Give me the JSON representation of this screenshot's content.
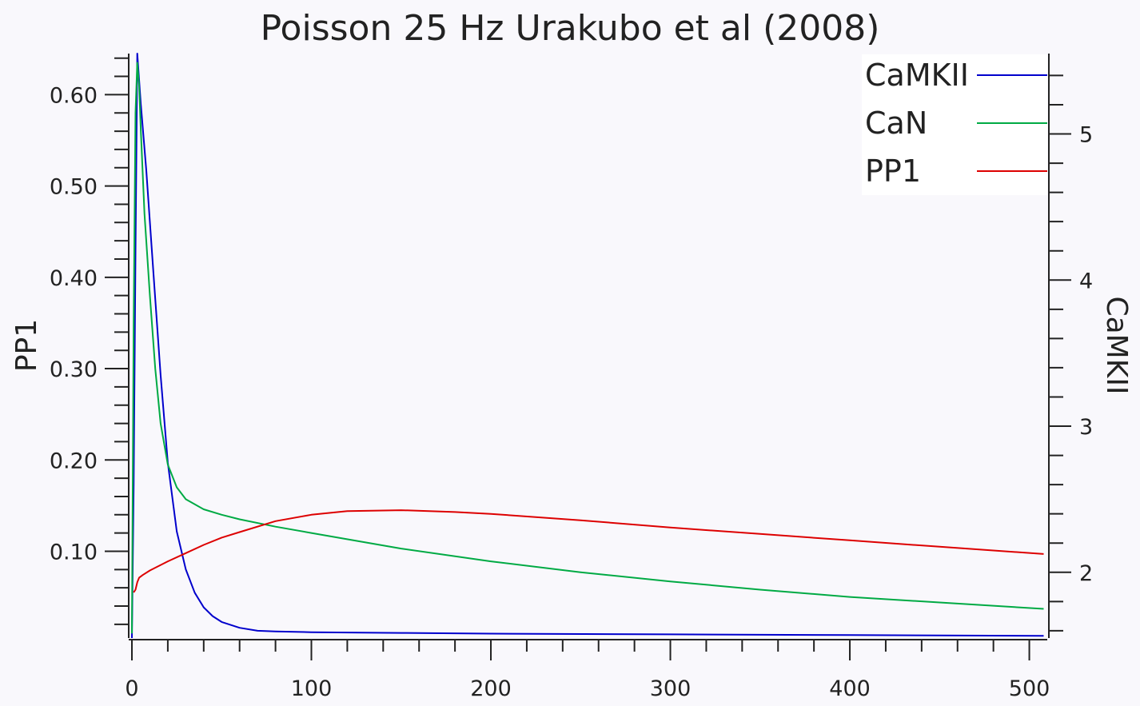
{
  "chart_data": {
    "type": "line",
    "title": "Poisson 25 Hz Urakubo et al (2008)",
    "xlabel": "",
    "ylabel_left": "PP1",
    "ylabel_right": "CaMKII",
    "xlim": [
      0,
      510
    ],
    "ylim_left": [
      0.005,
      0.645
    ],
    "ylim_right": [
      1.55,
      5.55
    ],
    "x_ticks": [
      0,
      100,
      200,
      300,
      400,
      500
    ],
    "y_left_ticks": [
      "0.10",
      "0.20",
      "0.30",
      "0.40",
      "0.50",
      "0.60"
    ],
    "y_right_ticks": [
      2,
      3,
      4,
      5
    ],
    "legend_position": "top-right",
    "series": [
      {
        "name": "CaMKII",
        "axis": "right",
        "color": "#0000cc",
        "x": [
          0,
          1,
          2,
          3,
          5,
          8,
          12,
          16,
          20,
          25,
          30,
          35,
          40,
          45,
          50,
          60,
          70,
          80,
          100,
          150,
          200,
          300,
          400,
          508
        ],
        "y": [
          1.55,
          2.6,
          4.2,
          5.55,
          5.2,
          4.75,
          4.05,
          3.35,
          2.75,
          2.28,
          2.02,
          1.86,
          1.76,
          1.7,
          1.66,
          1.62,
          1.6,
          1.595,
          1.59,
          1.585,
          1.58,
          1.575,
          1.57,
          1.565
        ]
      },
      {
        "name": "CaN",
        "axis": "left",
        "color": "#00aa44",
        "x": [
          0,
          1,
          2,
          3,
          4,
          5,
          7,
          10,
          13,
          16,
          20,
          25,
          30,
          40,
          50,
          60,
          80,
          100,
          150,
          200,
          250,
          300,
          350,
          400,
          450,
          508
        ],
        "y": [
          0.01,
          0.35,
          0.58,
          0.635,
          0.61,
          0.56,
          0.47,
          0.38,
          0.3,
          0.24,
          0.195,
          0.17,
          0.157,
          0.146,
          0.14,
          0.135,
          0.127,
          0.12,
          0.103,
          0.089,
          0.077,
          0.067,
          0.058,
          0.05,
          0.044,
          0.037
        ]
      },
      {
        "name": "PP1",
        "axis": "left",
        "color": "#dd0000",
        "x": [
          1,
          2,
          3,
          4,
          6,
          10,
          20,
          30,
          40,
          50,
          60,
          80,
          100,
          120,
          150,
          180,
          200,
          250,
          300,
          350,
          400,
          450,
          508
        ],
        "y": [
          0.055,
          0.058,
          0.066,
          0.071,
          0.074,
          0.079,
          0.089,
          0.098,
          0.107,
          0.115,
          0.121,
          0.133,
          0.14,
          0.144,
          0.145,
          0.143,
          0.141,
          0.134,
          0.126,
          0.119,
          0.112,
          0.105,
          0.097
        ]
      }
    ]
  }
}
